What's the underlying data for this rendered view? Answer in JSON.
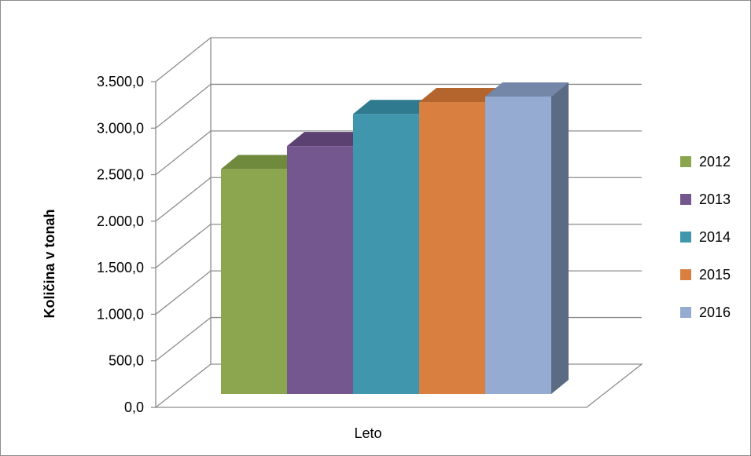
{
  "chart_data": {
    "type": "bar",
    "style": "3d-clustered-column",
    "xlabel": "Leto",
    "ylabel": "Količina v  tonah",
    "ylim": [
      0,
      3500
    ],
    "ytick_values": [
      0,
      500,
      1000,
      1500,
      2000,
      2500,
      3000,
      3500
    ],
    "ytick_labels": [
      "0,0",
      "500,0",
      "1.000,0",
      "1.500,0",
      "2.000,0",
      "2.500,0",
      "3.000,0",
      "3.500,0"
    ],
    "grid": true,
    "legend_position": "right",
    "series": [
      {
        "name": "2012",
        "value": 2450,
        "color": "#8ba64f",
        "top": "#6f8a3d",
        "side": "#5f7833"
      },
      {
        "name": "2013",
        "value": 2700,
        "color": "#74578f",
        "top": "#5a4172",
        "side": "#4d3863"
      },
      {
        "name": "2014",
        "value": 3050,
        "color": "#4097ad",
        "top": "#2f7a8e",
        "side": "#2a6b7d"
      },
      {
        "name": "2015",
        "value": 3180,
        "color": "#d98040",
        "top": "#b4652d",
        "side": "#9f5825"
      },
      {
        "name": "2016",
        "value": 3240,
        "color": "#95abd2",
        "top": "#7487a8",
        "side": "#5c6b84"
      }
    ]
  }
}
